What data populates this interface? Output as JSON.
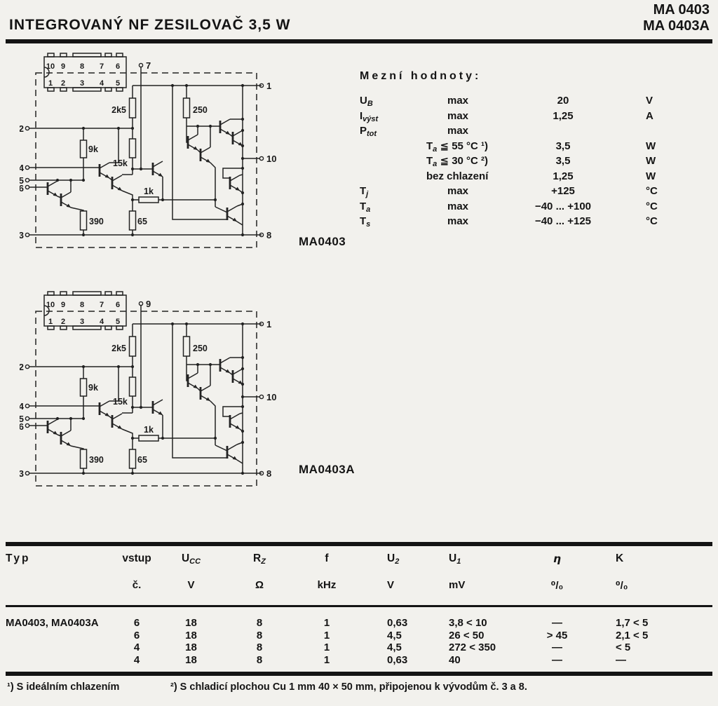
{
  "header": {
    "title": "INTEGROVANÝ NF ZESILOVAČ 3,5 W",
    "part_numbers": [
      "MA 0403",
      "MA 0403A"
    ]
  },
  "circuits": [
    {
      "caption": "MA0403",
      "top_pin": "7"
    },
    {
      "caption": "MA0403A",
      "top_pin": "9"
    }
  ],
  "schematic": {
    "dip_top": [
      "10",
      "9",
      "8",
      "7",
      "6"
    ],
    "dip_bottom": [
      "1",
      "2",
      "3",
      "4",
      "5"
    ],
    "left_pins": [
      "2",
      "4",
      "5",
      "6",
      "3"
    ],
    "right_pins": [
      "1",
      "10",
      "8"
    ],
    "resistors": {
      "r2k5": "2k5",
      "r250": "250",
      "r9k": "9k",
      "r15k": "15k",
      "r1k": "1k",
      "r390": "390",
      "r65": "65"
    }
  },
  "limits": {
    "title": "Mezní hodnoty:",
    "rows": [
      {
        "sb": "U",
        "ss": "B",
        "cp": "",
        "cs": "",
        "cr": "max",
        "val": "20",
        "unit": "V"
      },
      {
        "sb": "I",
        "ss": "výst",
        "cp": "",
        "cs": "",
        "cr": "max",
        "val": "1,25",
        "unit": "A"
      },
      {
        "sb": "P",
        "ss": "tot",
        "cp": "",
        "cs": "",
        "cr": "max",
        "val": "",
        "unit": ""
      },
      {
        "sb": "",
        "ss": "",
        "cp": "T",
        "cs": "a",
        "cr": " ≦ 55 °C ¹)",
        "val": "3,5",
        "unit": "W"
      },
      {
        "sb": "",
        "ss": "",
        "cp": "T",
        "cs": "a",
        "cr": " ≦ 30 °C ²)",
        "val": "3,5",
        "unit": "W"
      },
      {
        "sb": "",
        "ss": "",
        "cp": "",
        "cs": "",
        "cr": "bez chlazení",
        "val": "1,25",
        "unit": "W"
      },
      {
        "sb": "T",
        "ss": "j",
        "cp": "",
        "cs": "",
        "cr": "max",
        "val": "+125",
        "unit": "°C"
      },
      {
        "sb": "T",
        "ss": "a",
        "cp": "",
        "cs": "",
        "cr": "max",
        "val": "−40 ... +100",
        "unit": "°C"
      },
      {
        "sb": "T",
        "ss": "s",
        "cp": "",
        "cs": "",
        "cr": "max",
        "val": "−40 ... +125",
        "unit": "°C"
      }
    ]
  },
  "table": {
    "columns": [
      {
        "b": "Typ",
        "s": "",
        "u": ""
      },
      {
        "b": "vstup",
        "s": "",
        "u": "č."
      },
      {
        "b": "U",
        "s": "CC",
        "u": "V"
      },
      {
        "b": "R",
        "s": "Z",
        "u": "Ω"
      },
      {
        "b": "f",
        "s": "",
        "u": "kHz"
      },
      {
        "b": "U",
        "s": "2",
        "u": "V"
      },
      {
        "b": "U",
        "s": "1",
        "u": "mV"
      },
      {
        "b": "η",
        "s": "",
        "u": "⁰/₀"
      },
      {
        "b": "K",
        "s": "",
        "u": "⁰/₀"
      }
    ],
    "type_label": "MA0403, MA0403A",
    "rows": [
      {
        "cells": [
          "6",
          "18",
          "8",
          "1",
          "0,63",
          "3,8 < 10",
          "—",
          "1,7 < 5"
        ]
      },
      {
        "cells": [
          "6",
          "18",
          "8",
          "1",
          "4,5",
          "26 < 50",
          "> 45",
          "2,1 < 5"
        ]
      },
      {
        "cells": [
          "4",
          "18",
          "8",
          "1",
          "4,5",
          "272 < 350",
          "—",
          "< 5"
        ]
      },
      {
        "cells": [
          "4",
          "18",
          "8",
          "1",
          "0,63",
          "40",
          "—",
          "—"
        ]
      }
    ]
  },
  "footnotes": {
    "f1": "¹) S ideálním chlazením",
    "f2": "²) S chladicí plochou Cu 1 mm 40 × 50 mm, připojenou k vývodům č. 3 a 8."
  }
}
